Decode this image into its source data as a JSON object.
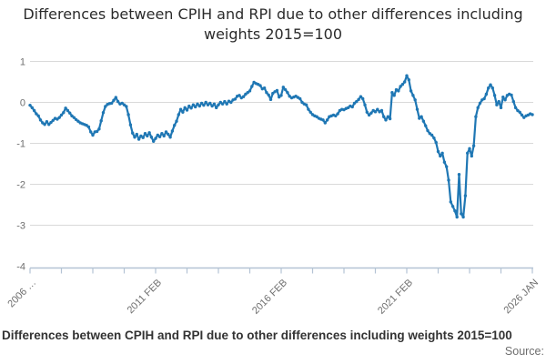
{
  "title": "Differences between CPIH and RPI due to other differences including weights 2015=100",
  "footer": {
    "caption": "Differences between CPIH and RPI due to other differences including weights 2015=100",
    "source_label": "Source:"
  },
  "colors": {
    "line": "#1f77b4",
    "grid": "#d9d9d9",
    "axis": "#b4c3d4",
    "tick_label": "#6f6f6f"
  },
  "chart_data": {
    "type": "line",
    "title": "Differences between CPIH and RPI due to other differences including weights 2015=100",
    "x_start": "2006 JAN",
    "x_end": "2026 JAN",
    "x_frequency": "monthly",
    "ylim": [
      -4,
      1
    ],
    "y_ticks": [
      1,
      0,
      -1,
      -2,
      -3,
      -4
    ],
    "grid": "horizontal-only",
    "legend": "none",
    "num_x_ticks": 17,
    "x_tick_labels": [
      {
        "tick_index": 0,
        "label": "2006 …"
      },
      {
        "tick_index": 4,
        "label": "2011 FEB"
      },
      {
        "tick_index": 8,
        "label": "2016 FEB"
      },
      {
        "tick_index": 12,
        "label": "2021 FEB"
      },
      {
        "tick_index": 16,
        "label": "2026 JAN"
      }
    ],
    "values": [
      -0.07,
      -0.13,
      -0.2,
      -0.28,
      -0.33,
      -0.43,
      -0.5,
      -0.54,
      -0.47,
      -0.54,
      -0.49,
      -0.44,
      -0.39,
      -0.41,
      -0.37,
      -0.31,
      -0.25,
      -0.14,
      -0.2,
      -0.26,
      -0.33,
      -0.37,
      -0.42,
      -0.46,
      -0.5,
      -0.52,
      -0.54,
      -0.56,
      -0.6,
      -0.72,
      -0.8,
      -0.72,
      -0.71,
      -0.65,
      -0.45,
      -0.25,
      -0.1,
      -0.05,
      -0.03,
      -0.02,
      0.05,
      0.12,
      0.02,
      -0.04,
      -0.02,
      -0.06,
      -0.1,
      -0.3,
      -0.55,
      -0.75,
      -0.85,
      -0.78,
      -0.9,
      -0.82,
      -0.86,
      -0.76,
      -0.82,
      -0.74,
      -0.85,
      -0.95,
      -0.88,
      -0.8,
      -0.84,
      -0.76,
      -0.82,
      -0.72,
      -0.78,
      -0.85,
      -0.7,
      -0.56,
      -0.46,
      -0.3,
      -0.17,
      -0.24,
      -0.13,
      -0.19,
      -0.09,
      -0.14,
      -0.06,
      -0.11,
      -0.04,
      -0.09,
      -0.02,
      -0.07,
      0.0,
      -0.06,
      -0.02,
      -0.09,
      -0.04,
      -0.13,
      -0.06,
      0.0,
      -0.04,
      0.02,
      -0.04,
      0.03,
      0.0,
      0.06,
      0.08,
      0.15,
      0.17,
      0.11,
      0.14,
      0.2,
      0.24,
      0.28,
      0.39,
      0.49,
      0.46,
      0.44,
      0.41,
      0.33,
      0.35,
      0.24,
      0.18,
      0.07,
      0.22,
      0.26,
      0.29,
      0.13,
      0.17,
      0.37,
      0.31,
      0.24,
      0.15,
      0.11,
      0.13,
      0.15,
      0.12,
      0.09,
      0.0,
      -0.04,
      -0.06,
      -0.17,
      -0.24,
      -0.3,
      -0.33,
      -0.35,
      -0.39,
      -0.41,
      -0.43,
      -0.5,
      -0.43,
      -0.35,
      -0.33,
      -0.31,
      -0.33,
      -0.28,
      -0.2,
      -0.17,
      -0.18,
      -0.15,
      -0.13,
      -0.09,
      -0.11,
      -0.02,
      0.02,
      0.07,
      0.14,
      0.09,
      -0.06,
      -0.24,
      -0.31,
      -0.26,
      -0.2,
      -0.23,
      -0.17,
      -0.23,
      -0.2,
      -0.35,
      -0.43,
      -0.35,
      -0.4,
      0.24,
      0.17,
      0.31,
      0.28,
      0.39,
      0.44,
      0.5,
      0.65,
      0.55,
      0.28,
      0.17,
      0.06,
      -0.17,
      -0.39,
      -0.35,
      -0.46,
      -0.57,
      -0.69,
      -0.76,
      -0.8,
      -0.87,
      -0.98,
      -1.2,
      -1.31,
      -1.24,
      -1.46,
      -1.57,
      -1.9,
      -2.43,
      -2.54,
      -2.65,
      -2.8,
      -1.76,
      -2.72,
      -2.8,
      -2.28,
      -1.24,
      -1.13,
      -1.31,
      -1.06,
      -0.35,
      -0.13,
      -0.02,
      0.06,
      0.09,
      0.2,
      0.35,
      0.43,
      0.35,
      0.17,
      -0.06,
      0.02,
      -0.13,
      0.13,
      0.06,
      0.17,
      0.2,
      0.18,
      0.02,
      -0.13,
      -0.2,
      -0.24,
      -0.31,
      -0.37,
      -0.33,
      -0.31,
      -0.28,
      -0.3
    ]
  }
}
